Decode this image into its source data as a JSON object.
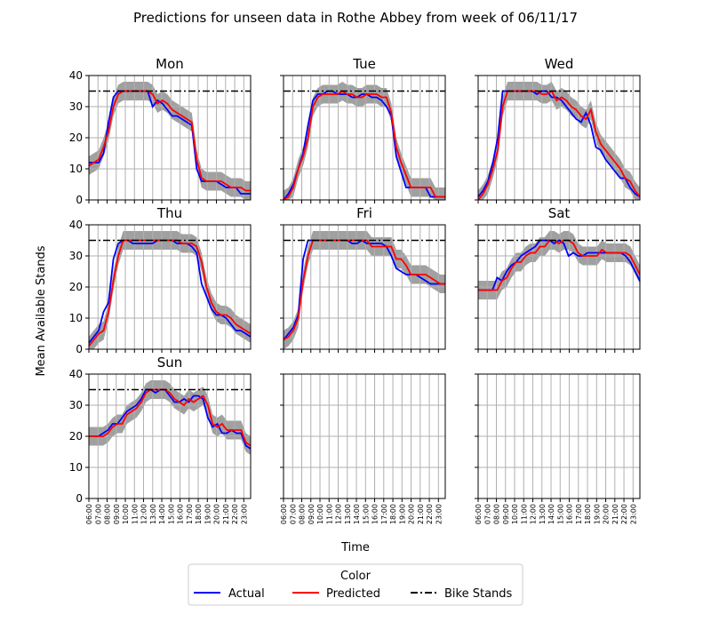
{
  "figure": {
    "title": "Predictions for unseen data in Rothe Abbey from week of 06/11/17",
    "xlabel": "Time",
    "ylabel": "Mean Available Stands"
  },
  "legend": {
    "title": "Color",
    "entries": [
      {
        "label": "Actual",
        "color": "#0000ff",
        "style": "solid"
      },
      {
        "label": "Predicted",
        "color": "#ff0000",
        "style": "solid"
      },
      {
        "label": "Bike Stands",
        "color": "#000000",
        "style": "dashdot"
      }
    ]
  },
  "colors": {
    "actual": "#0000ff",
    "predicted": "#ff0000",
    "band": "#a0a0a0",
    "grid": "#b0b0b0"
  },
  "chart_data": {
    "type": "line",
    "x_ticks": [
      "06:00",
      "07:00",
      "08:00",
      "09:00",
      "10:00",
      "11:00",
      "12:00",
      "13:00",
      "14:00",
      "15:00",
      "16:00",
      "17:00",
      "18:00",
      "19:00",
      "20:00",
      "21:00",
      "22:00",
      "23:00"
    ],
    "ylim": [
      0,
      40
    ],
    "y_ticks": [
      0,
      10,
      20,
      30,
      40
    ],
    "bike_stands": 35,
    "grid": true,
    "legend_position": "bottom-center",
    "note": "x values are half-hour steps starting at 06:00",
    "panels": [
      {
        "title": "Mon",
        "actual": [
          12,
          12,
          12,
          15,
          25,
          33,
          35,
          35,
          35,
          35,
          35,
          35,
          35,
          30,
          32,
          31,
          29,
          27,
          27,
          26,
          25,
          24,
          10,
          6,
          6,
          6,
          6,
          5,
          4,
          4,
          4,
          2,
          2,
          2
        ],
        "predicted": [
          11,
          12,
          13,
          17,
          22,
          30,
          34,
          35,
          35,
          35,
          35,
          35,
          35,
          34,
          31,
          32,
          31,
          29,
          28,
          27,
          26,
          25,
          13,
          7,
          6,
          6,
          6,
          6,
          5,
          4,
          4,
          4,
          3,
          3
        ],
        "band": [
          3,
          3,
          3,
          3,
          3,
          3,
          3,
          3,
          3,
          3,
          3,
          3,
          3,
          3,
          3,
          3,
          3,
          3,
          3,
          3,
          3,
          3,
          3,
          3,
          3,
          3,
          3,
          3,
          3,
          3,
          3,
          3,
          3,
          3
        ]
      },
      {
        "title": "Tue",
        "actual": [
          0,
          2,
          5,
          10,
          15,
          24,
          32,
          34,
          34,
          35,
          35,
          34,
          34,
          34,
          33,
          33,
          34,
          34,
          33,
          33,
          32,
          30,
          27,
          14,
          9,
          4,
          4,
          4,
          4,
          4,
          1,
          1,
          1,
          1
        ],
        "predicted": [
          0,
          1,
          4,
          10,
          14,
          20,
          30,
          33,
          34,
          34,
          34,
          34,
          35,
          34,
          34,
          33,
          33,
          34,
          34,
          34,
          33,
          33,
          28,
          17,
          12,
          8,
          4,
          4,
          4,
          4,
          4,
          1,
          1,
          1
        ],
        "band": [
          3,
          3,
          3,
          3,
          3,
          3,
          3,
          3,
          3,
          3,
          3,
          3,
          3,
          3,
          3,
          3,
          3,
          3,
          3,
          3,
          3,
          3,
          3,
          3,
          3,
          3,
          3,
          3,
          3,
          3,
          3,
          3,
          3,
          3
        ]
      },
      {
        "title": "Wed",
        "actual": [
          1,
          3,
          6,
          12,
          20,
          35,
          35,
          35,
          35,
          35,
          35,
          35,
          34,
          35,
          35,
          33,
          33,
          32,
          30,
          28,
          26,
          25,
          28,
          24,
          17,
          16,
          13,
          11,
          9,
          7,
          7,
          4,
          2,
          1
        ],
        "predicted": [
          0,
          2,
          5,
          10,
          16,
          30,
          35,
          35,
          35,
          35,
          35,
          35,
          35,
          34,
          34,
          35,
          32,
          33,
          32,
          30,
          29,
          27,
          26,
          29,
          22,
          18,
          16,
          14,
          12,
          10,
          7,
          6,
          3,
          1
        ],
        "band": [
          3,
          3,
          3,
          3,
          3,
          3,
          3,
          3,
          3,
          3,
          3,
          3,
          3,
          3,
          3,
          3,
          3,
          3,
          3,
          3,
          3,
          3,
          3,
          3,
          3,
          3,
          3,
          3,
          3,
          3,
          3,
          3,
          3,
          3
        ]
      },
      {
        "title": "Thu",
        "actual": [
          2,
          4,
          6,
          12,
          15,
          29,
          34,
          35,
          35,
          34,
          34,
          34,
          34,
          34,
          35,
          35,
          35,
          35,
          34,
          34,
          34,
          33,
          31,
          21,
          17,
          13,
          11,
          11,
          10,
          8,
          6,
          6,
          5,
          4
        ],
        "predicted": [
          1,
          3,
          5,
          6,
          12,
          22,
          30,
          35,
          35,
          35,
          35,
          35,
          35,
          35,
          35,
          35,
          35,
          35,
          35,
          34,
          34,
          34,
          33,
          28,
          20,
          15,
          12,
          11,
          11,
          10,
          8,
          7,
          6,
          5
        ],
        "band": [
          3,
          3,
          3,
          3,
          3,
          3,
          3,
          3,
          3,
          3,
          3,
          3,
          3,
          3,
          3,
          3,
          3,
          3,
          3,
          3,
          3,
          3,
          3,
          3,
          3,
          3,
          3,
          3,
          3,
          3,
          3,
          3,
          3,
          3
        ]
      },
      {
        "title": "Fri",
        "actual": [
          3,
          5,
          7,
          11,
          29,
          35,
          35,
          35,
          35,
          35,
          35,
          35,
          35,
          35,
          34,
          34,
          35,
          34,
          34,
          34,
          34,
          33,
          30,
          26,
          25,
          24,
          24,
          24,
          23,
          22,
          21,
          21,
          21,
          21
        ],
        "predicted": [
          3,
          4,
          6,
          10,
          22,
          30,
          35,
          35,
          35,
          35,
          35,
          35,
          35,
          35,
          35,
          35,
          35,
          35,
          33,
          33,
          33,
          33,
          33,
          29,
          29,
          27,
          24,
          24,
          24,
          24,
          23,
          22,
          21,
          21
        ],
        "band": [
          3,
          3,
          3,
          3,
          3,
          3,
          3,
          3,
          3,
          3,
          3,
          3,
          3,
          3,
          3,
          3,
          3,
          3,
          3,
          3,
          3,
          3,
          3,
          3,
          3,
          3,
          3,
          3,
          3,
          3,
          3,
          3,
          3,
          3
        ]
      },
      {
        "title": "Sat",
        "actual": [
          19,
          19,
          19,
          19,
          23,
          22,
          25,
          27,
          28,
          30,
          31,
          32,
          33,
          35,
          35,
          35,
          34,
          35,
          34,
          30,
          31,
          30,
          30,
          31,
          31,
          31,
          31,
          31,
          31,
          31,
          31,
          30,
          28,
          25,
          22
        ],
        "predicted": [
          19,
          19,
          19,
          19,
          19,
          22,
          23,
          26,
          28,
          28,
          30,
          31,
          31,
          33,
          33,
          35,
          35,
          34,
          35,
          35,
          34,
          31,
          30,
          30,
          30,
          30,
          32,
          31,
          31,
          31,
          31,
          31,
          30,
          27,
          24
        ],
        "band": [
          3,
          3,
          3,
          3,
          3,
          3,
          3,
          3,
          3,
          3,
          3,
          3,
          3,
          3,
          3,
          3,
          3,
          3,
          3,
          3,
          3,
          3,
          3,
          3,
          3,
          3,
          3,
          3,
          3,
          3,
          3,
          3,
          3,
          3,
          3
        ]
      },
      {
        "title": "Sun",
        "actual": [
          20,
          20,
          20,
          21,
          22,
          24,
          24,
          26,
          28,
          29,
          30,
          32,
          35,
          35,
          34,
          35,
          35,
          33,
          31,
          31,
          32,
          31,
          33,
          33,
          32,
          26,
          23,
          24,
          21,
          21,
          22,
          21,
          21,
          17,
          16
        ],
        "predicted": [
          20,
          20,
          20,
          20,
          21,
          23,
          24,
          24,
          27,
          28,
          29,
          31,
          34,
          35,
          35,
          35,
          35,
          34,
          32,
          31,
          30,
          32,
          31,
          32,
          33,
          30,
          24,
          23,
          24,
          22,
          22,
          22,
          22,
          18,
          17
        ],
        "band": [
          3,
          3,
          3,
          3,
          3,
          3,
          3,
          3,
          3,
          3,
          3,
          3,
          3,
          3,
          3,
          3,
          3,
          3,
          3,
          3,
          3,
          3,
          3,
          3,
          3,
          3,
          3,
          3,
          3,
          3,
          3,
          3,
          3,
          3,
          3
        ]
      },
      {
        "title": "",
        "actual": [],
        "predicted": [],
        "band": []
      },
      {
        "title": "",
        "actual": [],
        "predicted": [],
        "band": []
      }
    ]
  }
}
